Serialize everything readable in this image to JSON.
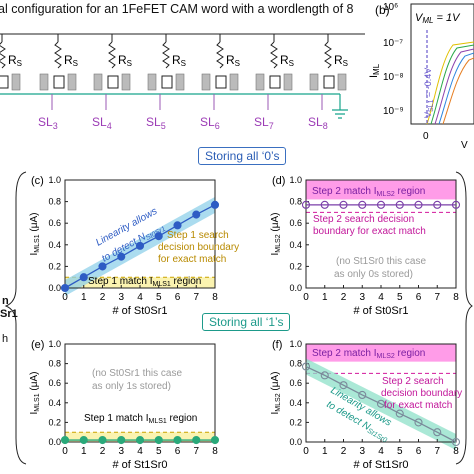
{
  "figure": {
    "title_top": "al configuration for an 1FeFET CAM word with a wordlength of 8",
    "circuit": {
      "resistor_label": "R",
      "resistor_sub": "S",
      "sl_labels": [
        "SL3",
        "SL4",
        "SL5",
        "SL6",
        "SL7",
        "SL8"
      ]
    },
    "panel_b": {
      "label": "(b)",
      "vml": "V_ML = 1V",
      "yticks": [
        "10⁶",
        "10⁻⁷",
        "10⁻⁸",
        "10⁻⁹"
      ],
      "ylabel": "I_ML",
      "vsl": "V_SL1 = -0.4V",
      "xtick": "0",
      "xlabel_partial": "V"
    },
    "storing_zeros": "Storing all ‘0’s",
    "storing_ones": "Storing all ‘1’s",
    "side_left": [
      "n",
      "Sr1"
    ],
    "side_left_mid": "h"
  },
  "chart_data": [
    {
      "panel": "(c)",
      "type": "line",
      "xlabel": "# of St0Sr1",
      "ylabel": "I_MLS1 (μA)",
      "x": [
        0,
        1,
        2,
        3,
        4,
        5,
        6,
        7,
        8
      ],
      "y": [
        0.0,
        0.1,
        0.2,
        0.29,
        0.39,
        0.48,
        0.58,
        0.68,
        0.77
      ],
      "xlim": [
        0,
        8
      ],
      "ylim": [
        0,
        1.0
      ],
      "yticks": [
        0.0,
        0.2,
        0.4,
        0.6,
        0.8,
        1.0
      ],
      "annotations": [
        "Linearity allows to detect N_St0Sr1",
        "Step 1 search decision boundary for exact match",
        "Step 1 match I_MLS1 region"
      ]
    },
    {
      "panel": "(d)",
      "type": "line",
      "xlabel": "# of St0Sr1",
      "ylabel": "I_MLS2 (μA)",
      "x": [
        0,
        1,
        2,
        3,
        4,
        5,
        6,
        7,
        8
      ],
      "y": [
        0.77,
        0.77,
        0.77,
        0.77,
        0.77,
        0.77,
        0.77,
        0.77,
        0.77
      ],
      "xlim": [
        0,
        8
      ],
      "ylim": [
        0,
        1.0
      ],
      "yticks": [
        0.0,
        0.2,
        0.4,
        0.6,
        0.8,
        1.0
      ],
      "annotations": [
        "Step 2 match I_MLS2 region",
        "Step 2 search decision boundary for exact match",
        "(no St1Sr0 this case as only 0s stored)"
      ]
    },
    {
      "panel": "(e)",
      "type": "line",
      "xlabel": "# of St1Sr0",
      "ylabel": "I_MLS1 (μA)",
      "x": [
        0,
        1,
        2,
        3,
        4,
        5,
        6,
        7,
        8
      ],
      "y": [
        0.02,
        0.02,
        0.02,
        0.02,
        0.02,
        0.02,
        0.02,
        0.02,
        0.02
      ],
      "xlim": [
        0,
        8
      ],
      "ylim": [
        0,
        1.0
      ],
      "yticks": [
        0.0,
        0.2,
        0.4,
        0.6,
        0.8,
        1.0
      ],
      "annotations": [
        "(no St0Sr1 this case as only 1s stored)",
        "Step 1 match I_MLS1 region"
      ]
    },
    {
      "panel": "(f)",
      "type": "line",
      "xlabel": "# of St1Sr0",
      "ylabel": "I_MLS2 (μA)",
      "x": [
        0,
        1,
        2,
        3,
        4,
        5,
        6,
        7,
        8
      ],
      "y": [
        0.77,
        0.68,
        0.58,
        0.48,
        0.39,
        0.29,
        0.2,
        0.1,
        0.0
      ],
      "xlim": [
        0,
        8
      ],
      "ylim": [
        0,
        1.0
      ],
      "yticks": [
        0.0,
        0.2,
        0.4,
        0.6,
        0.8,
        1.0
      ],
      "annotations": [
        "Step 2 match I_MLS2 region",
        "Step 2 search decision boundary for exact match",
        "Linearity allows to detect N_St1Sr0"
      ]
    }
  ]
}
